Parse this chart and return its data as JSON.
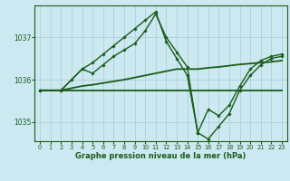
{
  "xlabel": "Graphe pression niveau de la mer (hPa)",
  "background_color": "#cce8f0",
  "grid_color": "#b0d0d8",
  "line_color": "#1a5c1a",
  "xlim": [
    -0.5,
    23.5
  ],
  "ylim": [
    1034.55,
    1037.75
  ],
  "yticks": [
    1035,
    1036,
    1037
  ],
  "xticks": [
    0,
    1,
    2,
    3,
    4,
    5,
    6,
    7,
    8,
    9,
    10,
    11,
    12,
    13,
    14,
    15,
    16,
    17,
    18,
    19,
    20,
    21,
    22,
    23
  ],
  "series": [
    {
      "x": [
        0,
        1,
        2,
        3,
        4,
        5,
        6,
        7,
        8,
        9,
        10,
        11,
        12,
        13,
        14,
        15,
        16,
        17,
        18,
        19,
        20,
        21,
        22,
        23
      ],
      "y": [
        1035.75,
        1035.75,
        1035.75,
        1035.75,
        1035.75,
        1035.75,
        1035.75,
        1035.75,
        1035.75,
        1035.75,
        1035.75,
        1035.75,
        1035.75,
        1035.75,
        1035.75,
        1035.75,
        1035.75,
        1035.75,
        1035.75,
        1035.75,
        1035.75,
        1035.75,
        1035.75,
        1035.75
      ],
      "marker": false,
      "lw": 1.3
    },
    {
      "x": [
        0,
        1,
        2,
        3,
        4,
        5,
        6,
        7,
        8,
        9,
        10,
        11,
        12,
        13,
        14,
        15,
        16,
        17,
        18,
        19,
        20,
        21,
        22,
        23
      ],
      "y": [
        1035.75,
        1035.75,
        1035.75,
        1035.8,
        1035.85,
        1035.88,
        1035.92,
        1035.96,
        1036.0,
        1036.05,
        1036.1,
        1036.15,
        1036.2,
        1036.25,
        1036.25,
        1036.25,
        1036.28,
        1036.3,
        1036.33,
        1036.36,
        1036.38,
        1036.4,
        1036.42,
        1036.45
      ],
      "marker": false,
      "lw": 1.3
    },
    {
      "x": [
        0,
        2,
        3,
        4,
        5,
        6,
        7,
        8,
        9,
        10,
        11,
        12,
        13,
        14,
        15,
        16,
        17,
        18,
        19,
        20,
        21,
        22,
        23
      ],
      "y": [
        1035.75,
        1035.75,
        1036.0,
        1036.25,
        1036.15,
        1036.35,
        1036.55,
        1036.7,
        1036.85,
        1037.15,
        1037.55,
        1037.0,
        1036.65,
        1036.3,
        1034.75,
        1034.6,
        1034.9,
        1035.2,
        1035.75,
        1036.1,
        1036.35,
        1036.5,
        1036.55
      ],
      "marker": true,
      "lw": 1.0
    },
    {
      "x": [
        0,
        2,
        4,
        5,
        6,
        7,
        8,
        9,
        10,
        11,
        12,
        13,
        14,
        15,
        16,
        17,
        18,
        19,
        20,
        21,
        22,
        23
      ],
      "y": [
        1035.75,
        1035.75,
        1036.25,
        1036.4,
        1036.6,
        1036.8,
        1037.0,
        1037.2,
        1037.4,
        1037.6,
        1036.9,
        1036.5,
        1036.1,
        1034.75,
        1035.3,
        1035.15,
        1035.4,
        1035.85,
        1036.25,
        1036.45,
        1036.55,
        1036.6
      ],
      "marker": true,
      "lw": 1.0
    }
  ]
}
